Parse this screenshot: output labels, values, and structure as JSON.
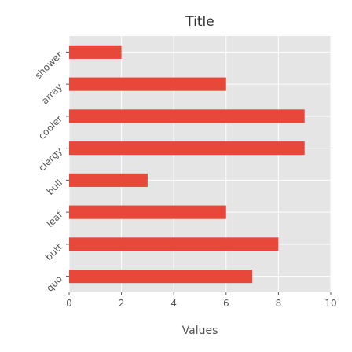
{
  "chart_data": {
    "type": "bar",
    "orientation": "horizontal",
    "title": "Title",
    "xlabel": "Values",
    "ylabel": "",
    "categories": [
      "quo",
      "butt",
      "leaf",
      "bull",
      "clergy",
      "cooler",
      "array",
      "shower"
    ],
    "values": [
      7,
      8,
      6,
      3,
      9,
      9,
      6,
      2
    ],
    "xlim": [
      0,
      10
    ],
    "xticks": [
      "0",
      "2",
      "4",
      "6",
      "8",
      "10"
    ],
    "grid": true,
    "bar_color": "#e8483a",
    "background_color": "#e5e5e5",
    "grid_color": "#ffffff"
  }
}
